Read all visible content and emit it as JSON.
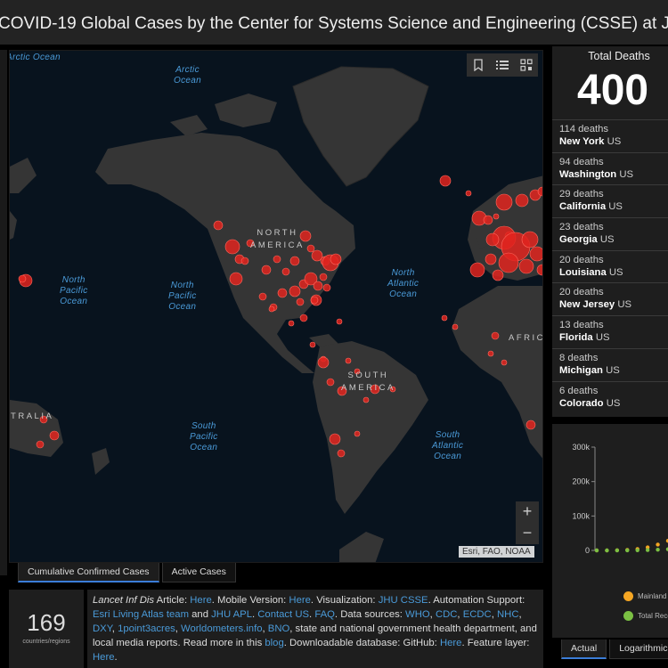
{
  "header": {
    "title": "COVID-19 Global Cases by the Center for Systems Science and Engineering (CSSE) at Johns Hopkins University (JHU)"
  },
  "map": {
    "ocean_labels": {
      "arctic_left": "Arctic\nOcean",
      "arctic": "Arctic\nOcean",
      "north_pacific_1": "North\nPacific\nOcean",
      "north_pacific_2": "North\nPacific\nOcean",
      "north_atlantic": "North\nAtlantic\nOcean",
      "south_pacific": "South\nPacific\nOcean",
      "south_atlantic": "South\nAtlantic\nOcean"
    },
    "continent_labels": {
      "north_america": "NORTH\nAMERICA",
      "south_america": "SOUTH\nAMERICA",
      "africa": "AFRICA",
      "australia": "AUSTRALIA"
    },
    "tools": [
      "bookmark-icon",
      "list-icon",
      "qr-code-icon"
    ],
    "zoom_in": "+",
    "zoom_out": "−",
    "attribution": "Esri, FAO, NOAA",
    "marker_color": "#e0241f"
  },
  "map_tabs": {
    "cumulative": "Cumulative Confirmed Cases",
    "active": "Active Cases"
  },
  "count_panel": {
    "value": "169",
    "label": "countries/regions"
  },
  "info_panel": {
    "article_prefix": "Lancet Inf Dis",
    "article_text": " Article: ",
    "here_1": "Here",
    "mobile_text": ". Mobile Version: ",
    "here_2": "Here",
    "viz_text": ". Visualization: ",
    "jhu_csse": "JHU CSSE",
    "automation_text": ". Automation Support: ",
    "esri_team": "Esri Living Atlas team",
    "and_text": " and ",
    "jhu_apl": "JHU APL",
    "dot_text": ". ",
    "contact_us": "Contact US",
    "dot_text2": ". ",
    "faq": "FAQ",
    "sources_text": ". Data sources: ",
    "sources": [
      "WHO",
      "CDC",
      "ECDC",
      "NHC",
      "DXY",
      "1point3acres",
      "Worldometers.info",
      "BNO"
    ],
    "sources_suffix": ", state and national government health department, and local media reports.  Read more in this ",
    "blog": "blog",
    "download_text": ". Downloadable database: GitHub: ",
    "here_3": "Here",
    "feature_text": ". Feature layer: ",
    "here_4": "Here",
    "end": "."
  },
  "deaths_panel": {
    "title": "Total Deaths",
    "total": "400",
    "rows": [
      {
        "count": "114 deaths",
        "name": "New York",
        "country": "US"
      },
      {
        "count": "94 deaths",
        "name": "Washington",
        "country": "US"
      },
      {
        "count": "29 deaths",
        "name": "California",
        "country": "US"
      },
      {
        "count": "23 deaths",
        "name": "Georgia",
        "country": "US"
      },
      {
        "count": "20 deaths",
        "name": "Louisiana",
        "country": "US"
      },
      {
        "count": "20 deaths",
        "name": "New Jersey",
        "country": "US"
      },
      {
        "count": "13 deaths",
        "name": "Florida",
        "country": "US"
      },
      {
        "count": "8 deaths",
        "name": "Michigan",
        "country": "US"
      },
      {
        "count": "6 deaths",
        "name": "Colorado",
        "country": "US"
      }
    ]
  },
  "chart_tabs": {
    "actual": "Actual",
    "logarithmic": "Logarithmic"
  },
  "chart_data": {
    "type": "line",
    "y_ticks": [
      "300k",
      "200k",
      "100k",
      "0"
    ],
    "ylim": [
      0,
      300000
    ],
    "series": [
      {
        "name": "Mainland China",
        "color": "#f5a623",
        "values": [
          0,
          0,
          500,
          1500,
          4000,
          9000,
          17000,
          28000
        ]
      },
      {
        "name": "Total Recovered",
        "color": "#7bc043",
        "values": [
          0,
          0,
          0,
          200,
          600,
          1200,
          2200,
          3500
        ]
      }
    ],
    "legend": [
      {
        "label": "Mainland China",
        "color": "#f5a623"
      },
      {
        "label": "Total Recovered",
        "color": "#7bc043"
      }
    ]
  }
}
